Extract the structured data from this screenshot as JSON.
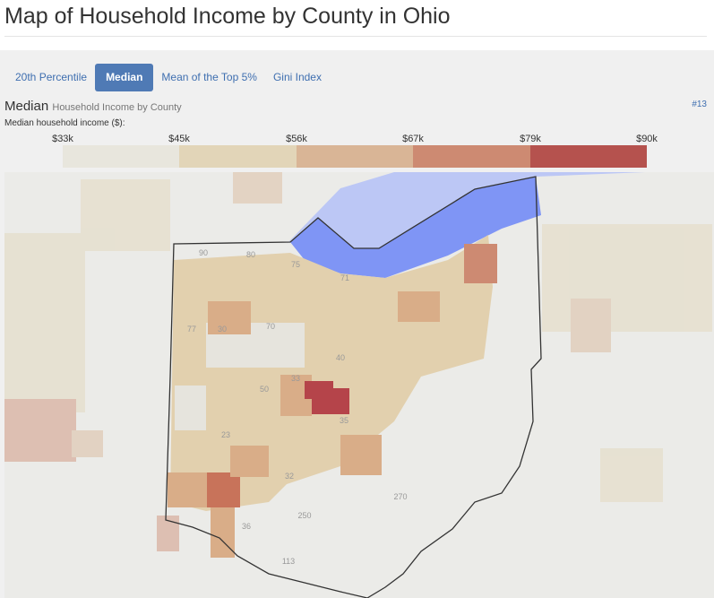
{
  "title": "Map of Household Income by County in Ohio",
  "tabs": [
    {
      "label": "20th Percentile"
    },
    {
      "label": "Median",
      "active": true
    },
    {
      "label": "Mean of the Top 5%"
    },
    {
      "label": "Gini Index"
    }
  ],
  "section": {
    "title": "Median",
    "subtitle": "Household Income by County",
    "rank": "#13"
  },
  "legend": {
    "label": "Median household income ($):",
    "ticks": [
      "$33k",
      "$45k",
      "$56k",
      "$67k",
      "$79k",
      "$90k"
    ],
    "colors": [
      "#e8e6dd",
      "#e2d5b8",
      "#d9b596",
      "#cd8a72",
      "#b5524e"
    ]
  },
  "map": {
    "lake_color": "#7f95f5",
    "highway_labels": [
      "90",
      "80",
      "75",
      "71",
      "70",
      "77",
      "30",
      "33",
      "40",
      "35",
      "50",
      "23",
      "32",
      "270",
      "250",
      "36",
      "113"
    ]
  }
}
